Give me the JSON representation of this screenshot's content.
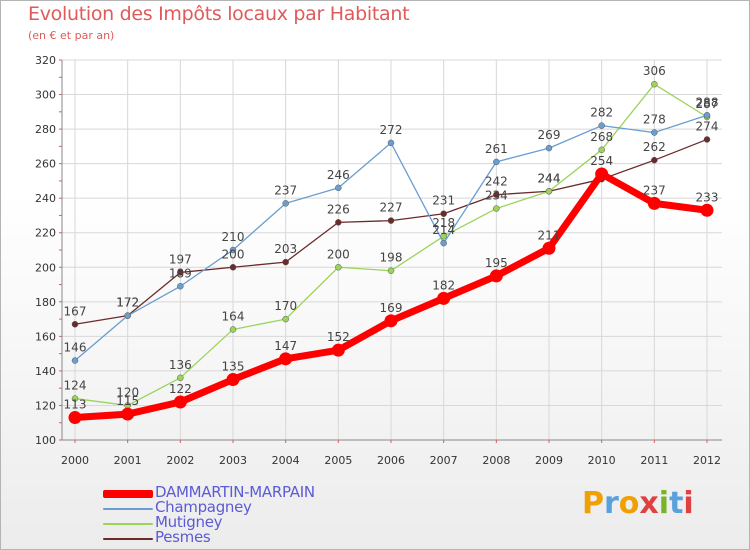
{
  "header": {
    "title": "Evolution des Impôts locaux par Habitant",
    "subtitle": "(en € et par an)"
  },
  "logo": {
    "text": "Proxiti",
    "letters": [
      "P",
      "r",
      "o",
      "x",
      "i",
      "t",
      "i"
    ],
    "letter_colors": [
      "#f0a000",
      "#5aa0dc",
      "#f0a000",
      "#e04040",
      "#78b428",
      "#5aa0dc",
      "#e04040"
    ]
  },
  "colors": {
    "tick_marks": "#e05a5a",
    "grid": "#d8d8d8",
    "axis_text": "#333333",
    "value_label": "#444444"
  },
  "chart_data": {
    "type": "line",
    "title": "Evolution des Impôts locaux par Habitant",
    "subtitle": "(en € et par an)",
    "xlabel": "",
    "ylabel": "",
    "ylim": [
      100,
      320
    ],
    "yticks": [
      100,
      120,
      140,
      160,
      180,
      200,
      220,
      240,
      260,
      280,
      300,
      320
    ],
    "grid": true,
    "legend_position": "bottom-left",
    "categories": [
      "2000",
      "2001",
      "2002",
      "2003",
      "2004",
      "2005",
      "2006",
      "2007",
      "2008",
      "2009",
      "2010",
      "2011",
      "2012"
    ],
    "series": [
      {
        "name": "Pesmes",
        "color": "#6b2b2b",
        "values": [
          167,
          172,
          197,
          200,
          203,
          226,
          227,
          231,
          242,
          244,
          251,
          262,
          274
        ],
        "labels": [
          "167",
          "172",
          "197",
          "200",
          "203",
          "226",
          "227",
          "231",
          "242",
          "244",
          "",
          "262",
          "274"
        ]
      },
      {
        "name": "Mutigney",
        "color": "#9ad45a",
        "values": [
          124,
          120,
          136,
          164,
          170,
          200,
          198,
          218,
          234,
          244,
          268,
          306,
          287
        ],
        "labels": [
          "124",
          "120",
          "136",
          "164",
          "170",
          "200",
          "198",
          "218",
          "234",
          "244",
          "268",
          "306",
          "287"
        ]
      },
      {
        "name": "Champagney",
        "color": "#6a9ed0",
        "values": [
          146,
          172,
          189,
          210,
          237,
          246,
          272,
          214,
          261,
          269,
          282,
          278,
          288
        ],
        "labels": [
          "146",
          "172",
          "189",
          "210",
          "237",
          "246",
          "272",
          "214",
          "261",
          "269",
          "282",
          "278",
          "288"
        ]
      },
      {
        "name": "DAMMARTIN-MARPAIN",
        "color": "#ff0000",
        "values": [
          113,
          115,
          122,
          135,
          147,
          152,
          169,
          182,
          195,
          211,
          254,
          237,
          233
        ],
        "labels": [
          "113",
          "115",
          "122",
          "135",
          "147",
          "152",
          "169",
          "182",
          "195",
          "211",
          "254",
          "237",
          "233"
        ]
      }
    ],
    "legend": [
      {
        "name": "DAMMARTIN-MARPAIN",
        "color": "#ff0000",
        "text_color": "#5b5bd6"
      },
      {
        "name": "Champagney",
        "color": "#6a9ed0",
        "text_color": "#5b5bd6"
      },
      {
        "name": "Mutigney",
        "color": "#9ad45a",
        "text_color": "#5b5bd6"
      },
      {
        "name": "Pesmes",
        "color": "#6b2b2b",
        "text_color": "#5b5bd6"
      }
    ]
  }
}
